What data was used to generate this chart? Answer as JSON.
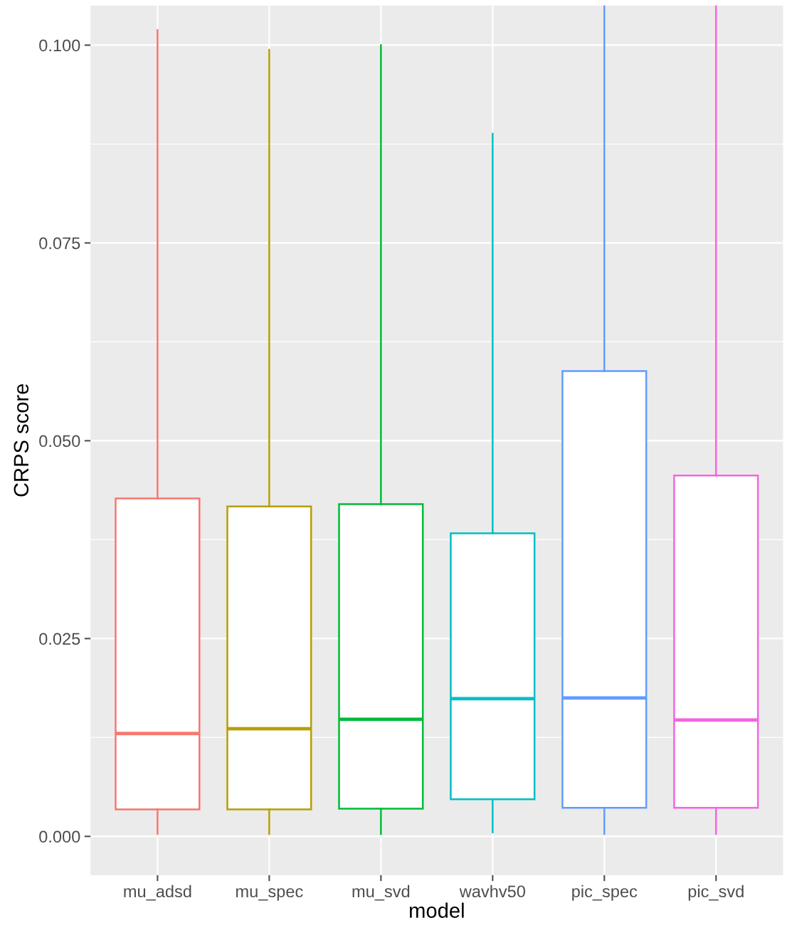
{
  "chart_data": {
    "type": "box",
    "xlabel": "model",
    "ylabel": "CRPS score",
    "categories": [
      "mu_adsd",
      "mu_spec",
      "mu_svd",
      "wavhv50",
      "pic_spec",
      "pic_svd"
    ],
    "colors": [
      "#f8766d",
      "#b79f00",
      "#00ba38",
      "#00bfc4",
      "#619cff",
      "#f564e3"
    ],
    "boxes": [
      {
        "low": 0.0003,
        "q1": 0.0034,
        "median": 0.013,
        "q3": 0.0427,
        "high": 0.1019
      },
      {
        "low": 0.0003,
        "q1": 0.0034,
        "median": 0.0136,
        "q3": 0.0417,
        "high": 0.0994
      },
      {
        "low": 0.0003,
        "q1": 0.0035,
        "median": 0.0148,
        "q3": 0.042,
        "high": 0.1
      },
      {
        "low": 0.0005,
        "q1": 0.0047,
        "median": 0.0174,
        "q3": 0.0383,
        "high": 0.0888
      },
      {
        "low": 0.0003,
        "q1": 0.0036,
        "median": 0.0175,
        "q3": 0.0588,
        "high": 0.105
      },
      {
        "low": 0.0003,
        "q1": 0.0036,
        "median": 0.0147,
        "q3": 0.0456,
        "high": 0.105
      }
    ],
    "ylim": [
      -0.0049,
      0.105
    ],
    "yticks": [
      {
        "value": 0,
        "label": "0.000"
      },
      0.025,
      {
        "value": 0.05,
        "label": "0.050"
      },
      0.075,
      {
        "value": 0.1,
        "label": "0.100"
      }
    ],
    "grid": true
  }
}
